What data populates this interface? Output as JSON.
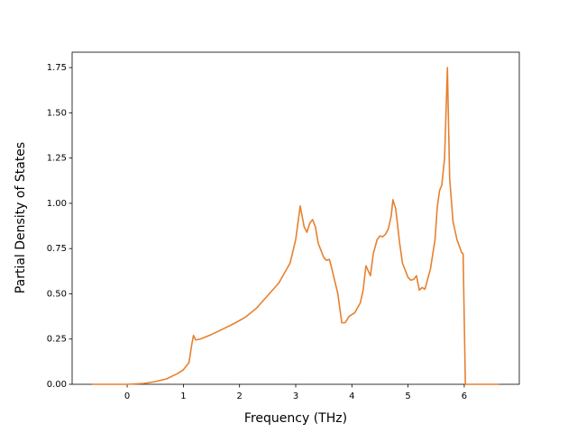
{
  "chart_data": {
    "type": "line",
    "x_label": "Frequency (THz)",
    "y_label": "Partial Density of States",
    "xlim": [
      -0.98,
      6.98
    ],
    "ylim": [
      0,
      1.835
    ],
    "xticks": [
      0,
      1,
      2,
      3,
      4,
      5,
      6
    ],
    "yticks": [
      {
        "value": 0,
        "label": "0.00"
      },
      {
        "value": 0.25,
        "label": "0.25"
      },
      {
        "value": 0.5,
        "label": "0.50"
      },
      {
        "value": 0.75,
        "label": "0.75"
      },
      {
        "value": 1,
        "label": "1.00"
      },
      {
        "value": 1.25,
        "label": "1.25"
      },
      {
        "value": 1.5,
        "label": "1.50"
      },
      {
        "value": 1.75,
        "label": "1.75"
      }
    ],
    "grid": false,
    "x": [
      -0.62,
      0,
      0.3,
      0.5,
      0.7,
      0.9,
      1.0,
      1.1,
      1.15,
      1.18,
      1.22,
      1.3,
      1.5,
      1.7,
      1.9,
      2.1,
      2.3,
      2.4,
      2.5,
      2.7,
      2.9,
      3.0,
      3.08,
      3.15,
      3.2,
      3.25,
      3.3,
      3.35,
      3.4,
      3.5,
      3.55,
      3.6,
      3.65,
      3.75,
      3.82,
      3.88,
      3.95,
      4.05,
      4.15,
      4.2,
      4.25,
      4.33,
      4.38,
      4.45,
      4.5,
      4.55,
      4.6,
      4.65,
      4.7,
      4.73,
      4.78,
      4.85,
      4.9,
      5.0,
      5.05,
      5.1,
      5.15,
      5.2,
      5.25,
      5.3,
      5.4,
      5.48,
      5.52,
      5.56,
      5.6,
      5.65,
      5.7,
      5.74,
      5.8,
      5.87,
      5.95,
      5.98,
      6.02,
      6.62
    ],
    "series": [
      {
        "color": "#e6812f",
        "values": [
          0,
          0,
          0.005,
          0.015,
          0.03,
          0.06,
          0.08,
          0.12,
          0.22,
          0.27,
          0.245,
          0.25,
          0.275,
          0.305,
          0.335,
          0.37,
          0.42,
          0.455,
          0.49,
          0.56,
          0.67,
          0.8,
          0.985,
          0.87,
          0.84,
          0.89,
          0.91,
          0.87,
          0.78,
          0.7,
          0.685,
          0.69,
          0.63,
          0.5,
          0.34,
          0.34,
          0.375,
          0.395,
          0.45,
          0.52,
          0.655,
          0.6,
          0.72,
          0.8,
          0.82,
          0.815,
          0.83,
          0.86,
          0.93,
          1.02,
          0.97,
          0.78,
          0.67,
          0.59,
          0.575,
          0.58,
          0.6,
          0.52,
          0.535,
          0.525,
          0.64,
          0.8,
          0.98,
          1.07,
          1.1,
          1.25,
          1.75,
          1.14,
          0.9,
          0.8,
          0.73,
          0.72,
          0,
          0
        ]
      }
    ]
  }
}
